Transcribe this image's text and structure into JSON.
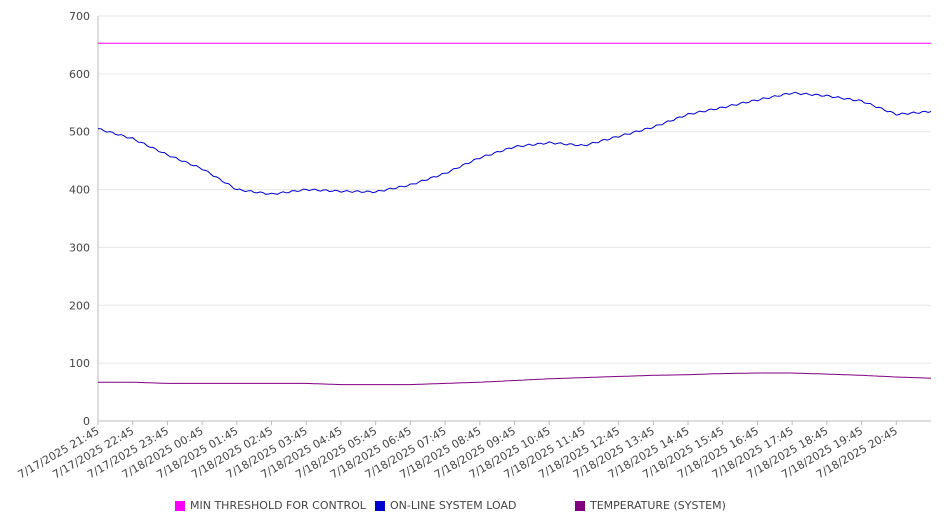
{
  "chart_data": {
    "type": "line",
    "title": "",
    "xlabel": "",
    "ylabel": "",
    "ylim": [
      0,
      700
    ],
    "yticks": [
      0,
      100,
      200,
      300,
      400,
      500,
      600,
      700
    ],
    "grid": true,
    "legend_position": "bottom",
    "x_tick_labels": [
      "7/17/2025 21:45",
      "7/17/2025 22:45",
      "7/17/2025 23:45",
      "7/18/2025 00:45",
      "7/18/2025 01:45",
      "7/18/2025 02:45",
      "7/18/2025 03:45",
      "7/18/2025 04:45",
      "7/18/2025 05:45",
      "7/18/2025 06:45",
      "7/18/2025 07:45",
      "7/18/2025 08:45",
      "7/18/2025 09:45",
      "7/18/2025 10:45",
      "7/18/2025 11:45",
      "7/18/2025 12:45",
      "7/18/2025 13:45",
      "7/18/2025 14:45",
      "7/18/2025 15:45",
      "7/18/2025 16:45",
      "7/18/2025 17:45",
      "7/18/2025 18:45",
      "7/18/2025 19:45",
      "7/18/2025 20:45"
    ],
    "x": [
      "7/17/2025 21:45",
      "7/17/2025 22:45",
      "7/17/2025 23:45",
      "7/18/2025 00:45",
      "7/18/2025 01:45",
      "7/18/2025 02:45",
      "7/18/2025 03:45",
      "7/18/2025 04:45",
      "7/18/2025 05:45",
      "7/18/2025 06:45",
      "7/18/2025 07:45",
      "7/18/2025 08:45",
      "7/18/2025 09:45",
      "7/18/2025 10:45",
      "7/18/2025 11:45",
      "7/18/2025 12:45",
      "7/18/2025 13:45",
      "7/18/2025 14:45",
      "7/18/2025 15:45",
      "7/18/2025 16:45",
      "7/18/2025 17:45",
      "7/18/2025 18:45",
      "7/18/2025 19:45",
      "7/18/2025 20:45",
      "7/18/2025 21:45"
    ],
    "series": [
      {
        "name": "MIN THRESHOLD FOR CONTROL",
        "color": "#ff00ff",
        "values": [
          653,
          653,
          653,
          653,
          653,
          653,
          653,
          653,
          653,
          653,
          653,
          653,
          653,
          653,
          653,
          653,
          653,
          653,
          653,
          653,
          653,
          653,
          653,
          653,
          653
        ]
      },
      {
        "name": "ON-LINE SYSTEM LOAD",
        "color": "#0000cc",
        "values": [
          505,
          488,
          460,
          436,
          400,
          392,
          400,
          397,
          396,
          408,
          428,
          455,
          474,
          481,
          476,
          492,
          508,
          530,
          542,
          555,
          567,
          562,
          553,
          530,
          535
        ]
      },
      {
        "name": "TEMPERATURE (SYSTEM)",
        "color": "#800080",
        "values": [
          67,
          67,
          65,
          65,
          65,
          65,
          65,
          63,
          63,
          63,
          65,
          67,
          70,
          73,
          75,
          77,
          79,
          80,
          82,
          83,
          83,
          81,
          79,
          76,
          74
        ]
      }
    ]
  }
}
